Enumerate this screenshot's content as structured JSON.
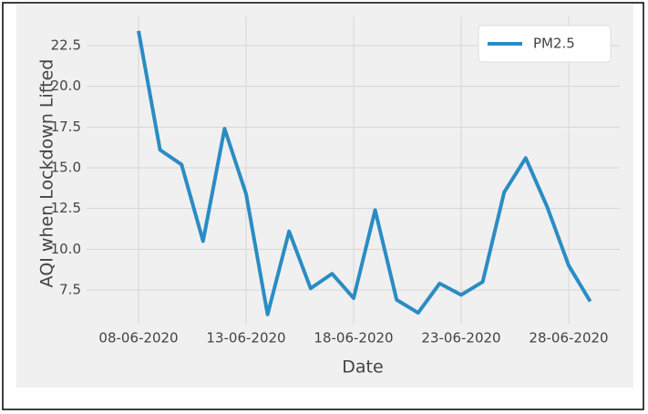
{
  "chart_data": {
    "type": "line",
    "x": [
      "08-06-2020",
      "09-06-2020",
      "10-06-2020",
      "11-06-2020",
      "12-06-2020",
      "13-06-2020",
      "14-06-2020",
      "15-06-2020",
      "16-06-2020",
      "17-06-2020",
      "18-06-2020",
      "19-06-2020",
      "20-06-2020",
      "21-06-2020",
      "22-06-2020",
      "23-06-2020",
      "24-06-2020",
      "25-06-2020",
      "26-06-2020",
      "27-06-2020",
      "28-06-2020",
      "29-06-2020"
    ],
    "series": [
      {
        "name": "PM2.5",
        "color": "#2b8cc4",
        "values": [
          23.4,
          16.1,
          15.2,
          10.5,
          17.4,
          13.4,
          6.0,
          11.1,
          7.6,
          8.5,
          7.0,
          12.4,
          6.9,
          6.1,
          7.9,
          7.2,
          8.0,
          13.5,
          15.6,
          12.6,
          9.0,
          6.8
        ]
      }
    ],
    "xlabel": "Date",
    "ylabel": "AQI when Lockdown Lifted",
    "xticks": [
      "08-06-2020",
      "13-06-2020",
      "18-06-2020",
      "23-06-2020",
      "28-06-2020"
    ],
    "ylim": [
      5.43,
      24.29
    ],
    "yticks": [
      7.5,
      10.0,
      12.5,
      15.0,
      17.5,
      20.0,
      22.5
    ],
    "grid": true,
    "legend": "upper-right"
  }
}
